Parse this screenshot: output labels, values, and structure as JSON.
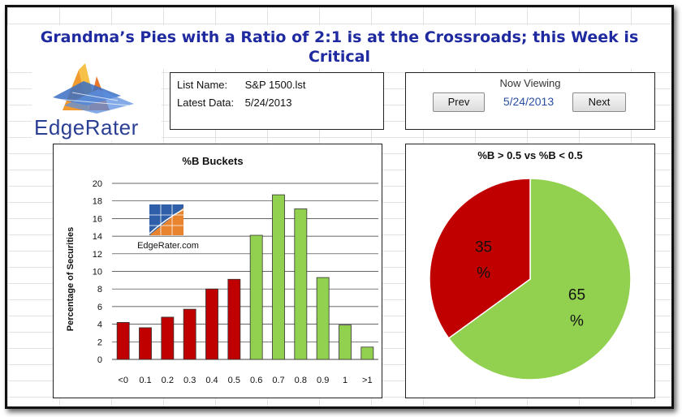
{
  "title": "Grandma’s Pies with a Ratio of 2:1 is at the Crossroads; this Week is Critical",
  "logo": {
    "text": "EdgeRater"
  },
  "list_info": {
    "list_name_label": "List Name:",
    "list_name_value": "S&P 1500.lst",
    "latest_data_label": "Latest Data:",
    "latest_data_value": "5/24/2013"
  },
  "navigation": {
    "heading": "Now Viewing",
    "prev_label": "Prev",
    "next_label": "Next",
    "current_date": "5/24/2013"
  },
  "bar_chart": {
    "watermark": "EdgeRater.com"
  },
  "colors": {
    "red": "#c00000",
    "green": "#92d050",
    "title_blue": "#1f2aa0"
  },
  "chart_data": [
    {
      "type": "bar",
      "title": "%B Buckets",
      "xlabel": "",
      "ylabel": "Percentage of Securities",
      "ylim": [
        0,
        20
      ],
      "yticks": [
        0,
        2,
        4,
        6,
        8,
        10,
        12,
        14,
        16,
        18,
        20
      ],
      "grid": true,
      "categories": [
        "<0",
        "0.1",
        "0.2",
        "0.3",
        "0.4",
        "0.5",
        "0.6",
        "0.7",
        "0.8",
        "0.9",
        "1",
        ">1"
      ],
      "values": [
        4.2,
        3.6,
        4.8,
        5.7,
        8.0,
        9.1,
        14.1,
        18.7,
        17.1,
        9.3,
        3.9,
        1.4
      ],
      "bar_colors": [
        "#c00000",
        "#c00000",
        "#c00000",
        "#c00000",
        "#c00000",
        "#c00000",
        "#92d050",
        "#92d050",
        "#92d050",
        "#92d050",
        "#92d050",
        "#92d050"
      ]
    },
    {
      "type": "pie",
      "title": "%B > 0.5 vs %B < 0.5",
      "slices": [
        {
          "value": 35,
          "label_top": "35",
          "label_bottom": "%",
          "color": "#c00000"
        },
        {
          "value": 65,
          "label_top": "65",
          "label_bottom": "%",
          "color": "#92d050"
        }
      ]
    }
  ]
}
